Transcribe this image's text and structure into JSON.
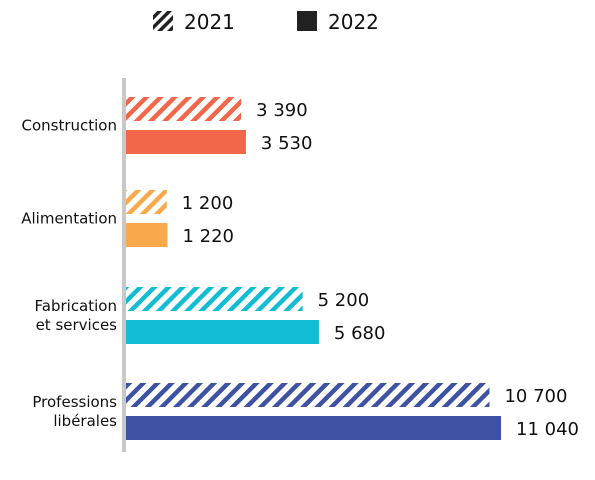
{
  "chart_data": {
    "type": "bar",
    "orientation": "horizontal",
    "categories": [
      [
        "Construction"
      ],
      [
        "Alimentation"
      ],
      [
        "Fabrication",
        "et services"
      ],
      [
        "Professions",
        "libérales"
      ]
    ],
    "series": [
      {
        "name": "2021",
        "pattern": "hatched",
        "values": [
          3390,
          1200,
          5200,
          10700
        ],
        "labels": [
          "3 390",
          "1 200",
          "5 200",
          "10 700"
        ]
      },
      {
        "name": "2022",
        "pattern": "solid",
        "values": [
          3530,
          1220,
          5680,
          11040
        ],
        "labels": [
          "3 530",
          "1 220",
          "5 680",
          "11 040"
        ]
      }
    ],
    "category_colors": [
      "#f26649",
      "#f9a94b",
      "#12bcd2",
      "#3f51a3"
    ],
    "legend": {
      "position": "top",
      "items": [
        "2021",
        "2022"
      ],
      "swatch_color": "#222222"
    },
    "xlim": [
      0,
      11040
    ],
    "grid": false
  }
}
